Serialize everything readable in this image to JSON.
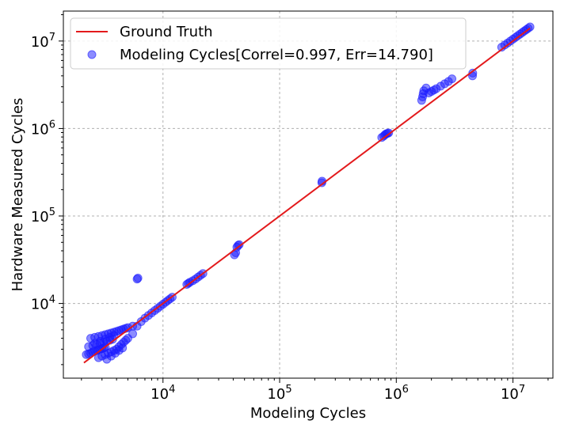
{
  "chart_data": {
    "type": "scatter",
    "xscale": "log",
    "yscale": "log",
    "xlabel": "Modeling Cycles",
    "ylabel": "Hardware Measured Cycles",
    "xlim": [
      1400,
      22000000
    ],
    "ylim": [
      1400,
      22000000
    ],
    "x_ticks": [
      {
        "value": 10000,
        "base": "10",
        "exp": "4"
      },
      {
        "value": 100000,
        "base": "10",
        "exp": "5"
      },
      {
        "value": 1000000,
        "base": "10",
        "exp": "6"
      },
      {
        "value": 10000000,
        "base": "10",
        "exp": "7"
      }
    ],
    "y_ticks": [
      {
        "value": 10000,
        "base": "10",
        "exp": "4"
      },
      {
        "value": 100000,
        "base": "10",
        "exp": "5"
      },
      {
        "value": 1000000,
        "base": "10",
        "exp": "6"
      },
      {
        "value": 10000000,
        "base": "10",
        "exp": "7"
      }
    ],
    "grid": true,
    "legend_position": "top-left",
    "colors": {
      "ground_truth": "#e31a1c",
      "modeling": "#1a1aff"
    },
    "ground_truth": {
      "name": "Ground Truth",
      "x": [
        2100,
        14000000
      ],
      "y": [
        2100,
        14000000
      ]
    },
    "series": [
      {
        "name": "Modeling Cycles[Correl=0.997, Err=14.790]",
        "x": [
          2200,
          2300,
          2400,
          2500,
          2600,
          2700,
          2800,
          2900,
          3000,
          3100,
          3200,
          2300,
          2500,
          2700,
          2900,
          3100,
          3300,
          3500,
          3700,
          2400,
          2600,
          2800,
          3000,
          3200,
          3400,
          3600,
          3800,
          4000,
          4200,
          4400,
          4600,
          4800,
          5000,
          5500,
          2800,
          3000,
          3200,
          3400,
          3600,
          3800,
          4000,
          4200,
          4400,
          4600,
          4800,
          5000,
          5500,
          6000,
          6500,
          7000,
          7500,
          8000,
          8500,
          9000,
          9500,
          10000,
          10500,
          11000,
          11500,
          12000,
          3300,
          3600,
          3900,
          4200,
          4500,
          2600,
          2900,
          3200,
          3500,
          3800,
          6000,
          6100,
          16000,
          16500,
          17000,
          18000,
          19000,
          20000,
          21000,
          22000,
          41000,
          42000,
          43000,
          44000,
          45000,
          230000,
          231000,
          750000,
          780000,
          800000,
          820000,
          840000,
          860000,
          1650000,
          1680000,
          1700000,
          1720000,
          1800000,
          1900000,
          2000000,
          2100000,
          2200000,
          2400000,
          2600000,
          2800000,
          3000000,
          4500000,
          4520000,
          8000000,
          8500000,
          9000000,
          9500000,
          10000000,
          10500000,
          11000000,
          11500000,
          12000000,
          12500000,
          13000000,
          13500000,
          14000000
        ],
        "y": [
          2600,
          2650,
          2700,
          2800,
          2850,
          2900,
          2950,
          3000,
          3050,
          3100,
          3150,
          3200,
          3300,
          3400,
          3500,
          3600,
          3700,
          3800,
          3900,
          4000,
          4100,
          4200,
          4300,
          4400,
          4500,
          4600,
          4700,
          4800,
          4900,
          5000,
          5100,
          5200,
          5300,
          5500,
          2400,
          2500,
          2600,
          2700,
          2800,
          2900,
          3000,
          3200,
          3400,
          3600,
          3800,
          4000,
          4500,
          5500,
          6200,
          6800,
          7300,
          7800,
          8300,
          8800,
          9300,
          9800,
          10300,
          10800,
          11300,
          11800,
          2300,
          2500,
          2700,
          2900,
          3100,
          3500,
          3700,
          3900,
          4100,
          4300,
          19000,
          19500,
          16500,
          17000,
          17500,
          18200,
          19000,
          20000,
          21000,
          22000,
          36000,
          38000,
          44000,
          46000,
          47000,
          240000,
          250000,
          790000,
          820000,
          850000,
          870000,
          880000,
          890000,
          2100000,
          2300000,
          2500000,
          2700000,
          2900000,
          2550000,
          2650000,
          2750000,
          2850000,
          3050000,
          3250000,
          3450000,
          3700000,
          4000000,
          4300000,
          8500000,
          9000000,
          9500000,
          10000000,
          10500000,
          11000000,
          11500000,
          12000000,
          12500000,
          13000000,
          13500000,
          14000000,
          14500000
        ]
      }
    ]
  }
}
